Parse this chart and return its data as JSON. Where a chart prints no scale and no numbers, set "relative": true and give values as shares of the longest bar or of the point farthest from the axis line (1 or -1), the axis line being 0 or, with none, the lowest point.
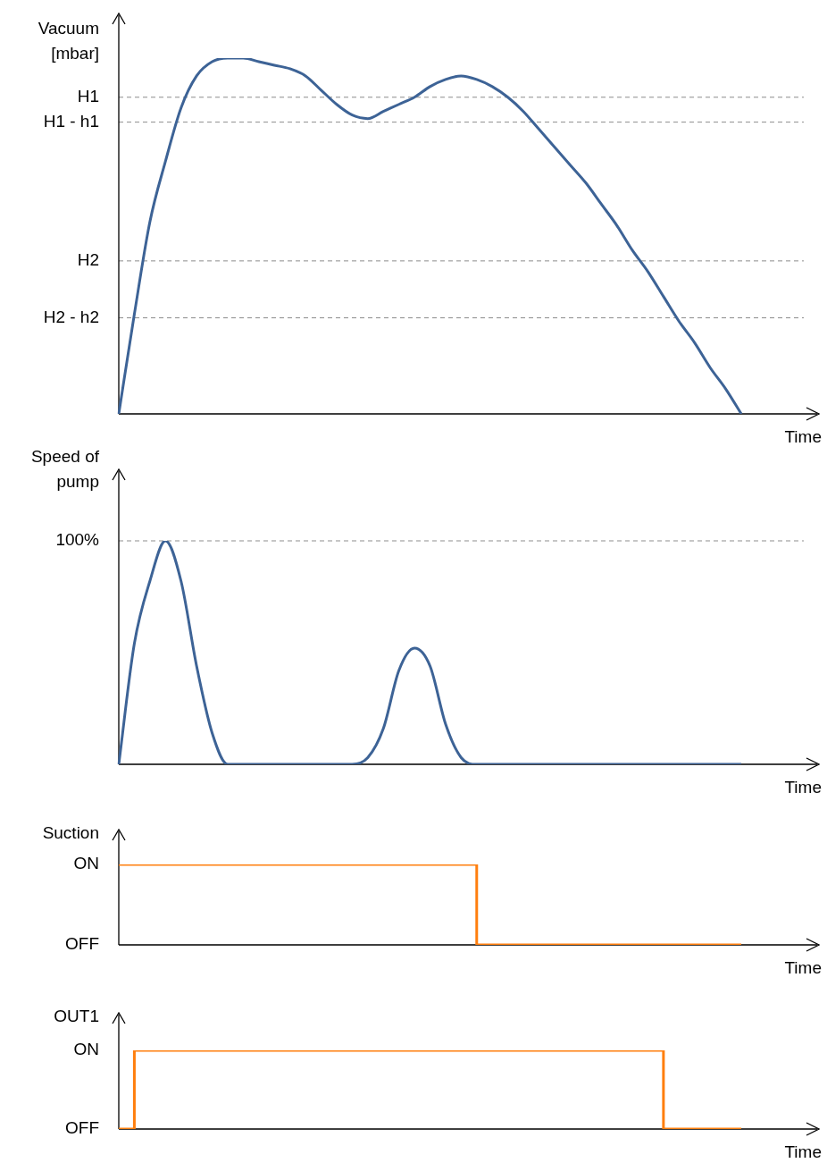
{
  "chart_data": [
    {
      "type": "line",
      "ylabel": "Vacuum [mbar]",
      "xlabel": "Time",
      "relative": true,
      "marker": "none",
      "categories": [
        null,
        null,
        null,
        null,
        null,
        null,
        null,
        null,
        null,
        null,
        null,
        null,
        null,
        null,
        null,
        null,
        null,
        null,
        null,
        null,
        null,
        null,
        null,
        null,
        null,
        null,
        null,
        null,
        null,
        null,
        null,
        null,
        null,
        null,
        null,
        null,
        null,
        null,
        null,
        null,
        null
      ],
      "series": [
        {
          "color": "#3d6396",
          "values": [
            0,
            0.28,
            0.54,
            0.71,
            0.86,
            0.95,
            0.99,
            1,
            1,
            0.99,
            0.98,
            0.97,
            0.95,
            0.91,
            0.87,
            0.84,
            0.83,
            0.85,
            0.87,
            0.89,
            0.92,
            0.94,
            0.95,
            0.94,
            0.92,
            0.89,
            0.85,
            0.8,
            0.75,
            0.7,
            0.65,
            0.59,
            0.53,
            0.46,
            0.4,
            0.33,
            0.26,
            0.2,
            0.13,
            0.07,
            0
          ]
        }
      ],
      "ref_lines": [
        {
          "axis": "y",
          "value": 0.89,
          "label": "H1",
          "color": "#8c8c8c",
          "line_style": "dashed"
        },
        {
          "axis": "y",
          "value": 0.82,
          "label": "H1 - h1",
          "color": "#8c8c8c",
          "line_style": "dashed"
        },
        {
          "axis": "y",
          "value": 0.43,
          "label": "H2",
          "color": "#8c8c8c",
          "line_style": "dashed"
        },
        {
          "axis": "y",
          "value": 0.27,
          "label": "H2 - h2",
          "color": "#8c8c8c",
          "line_style": "dashed"
        }
      ]
    },
    {
      "type": "line",
      "ylabel": "Speed of pump",
      "xlabel": "Time",
      "relative": true,
      "marker": "none",
      "categories": [
        null,
        null,
        null,
        null,
        null,
        null,
        null,
        null,
        null,
        null,
        null,
        null,
        null,
        null,
        null,
        null,
        null,
        null,
        null,
        null,
        null,
        null,
        null,
        null,
        null,
        null,
        null,
        null,
        null,
        null,
        null,
        null,
        null,
        null,
        null,
        null,
        null,
        null,
        null,
        null,
        null
      ],
      "series": [
        {
          "color": "#3d6396",
          "values": [
            0,
            0.54,
            0.82,
            1,
            0.82,
            0.44,
            0.14,
            0,
            0,
            0,
            0,
            0,
            0,
            0,
            0,
            0,
            0.03,
            0.16,
            0.42,
            0.52,
            0.44,
            0.18,
            0.03,
            0,
            0,
            0,
            0,
            0,
            0,
            0,
            0,
            0,
            0,
            0,
            0,
            0,
            0,
            0,
            0,
            0,
            0
          ]
        }
      ],
      "ref_lines": [
        {
          "axis": "y",
          "value": 1,
          "label": "100%",
          "color": "#8c8c8c",
          "line_style": "dashed"
        }
      ]
    },
    {
      "type": "step",
      "ylabel": "Suction",
      "xlabel": "Time",
      "marker": "none",
      "relative": true,
      "annotations": [
        "ON",
        "OFF"
      ],
      "categories": [
        null,
        null,
        null,
        null,
        null,
        null,
        null,
        null,
        null,
        null,
        null,
        null,
        null,
        null,
        null,
        null,
        null,
        null,
        null,
        null,
        null,
        null,
        null,
        null,
        null,
        null,
        null,
        null,
        null,
        null,
        null,
        null,
        null,
        null,
        null,
        null,
        null,
        null,
        null,
        null,
        null
      ],
      "series": [
        {
          "color": "#ff7f0e",
          "values": [
            1,
            1,
            1,
            1,
            1,
            1,
            1,
            1,
            1,
            1,
            1,
            1,
            1,
            1,
            1,
            1,
            1,
            1,
            1,
            1,
            1,
            1,
            1,
            1,
            0,
            0,
            0,
            0,
            0,
            0,
            0,
            0,
            0,
            0,
            0,
            0,
            0,
            0,
            0,
            0,
            0
          ]
        }
      ]
    },
    {
      "type": "step",
      "ylabel": "OUT1",
      "xlabel": "Time",
      "marker": "none",
      "relative": true,
      "annotations": [
        "ON",
        "OFF"
      ],
      "categories": [
        null,
        null,
        null,
        null,
        null,
        null,
        null,
        null,
        null,
        null,
        null,
        null,
        null,
        null,
        null,
        null,
        null,
        null,
        null,
        null,
        null,
        null,
        null,
        null,
        null,
        null,
        null,
        null,
        null,
        null,
        null,
        null,
        null,
        null,
        null,
        null,
        null,
        null,
        null,
        null,
        null
      ],
      "series": [
        {
          "color": "#ff7f0e",
          "values": [
            0,
            0,
            1,
            1,
            1,
            1,
            1,
            1,
            1,
            1,
            1,
            1,
            1,
            1,
            1,
            1,
            1,
            1,
            1,
            1,
            1,
            1,
            1,
            1,
            1,
            1,
            1,
            1,
            1,
            1,
            1,
            1,
            1,
            1,
            1,
            1,
            0,
            0,
            0,
            0,
            0
          ]
        }
      ]
    }
  ]
}
